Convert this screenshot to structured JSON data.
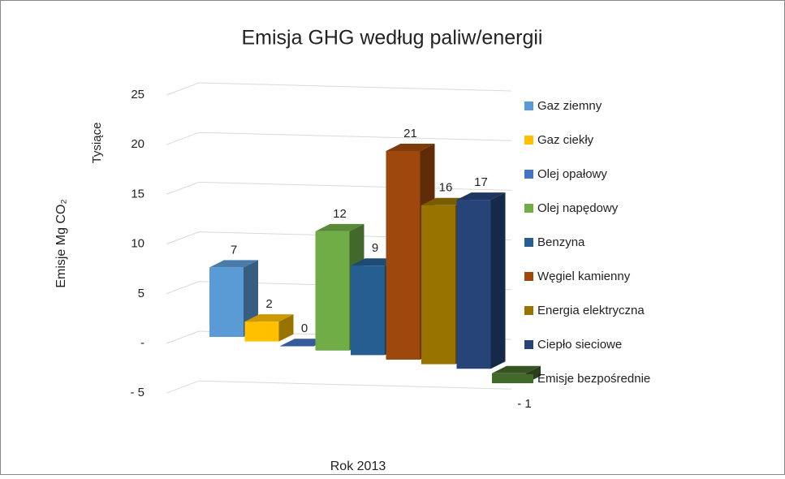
{
  "chart_data": {
    "type": "bar3d",
    "title": "Emisja GHG według paliw/energii",
    "y_label": "Emisje Mg CO₂",
    "y_units": "Tysiące",
    "categories": [
      "Rok 2013"
    ],
    "ylim": [
      -5,
      25
    ],
    "yticks": [
      {
        "value": -5,
        "label": "- 5"
      },
      {
        "value": 0,
        "label": "-"
      },
      5,
      10,
      15,
      20,
      25
    ],
    "grid": true,
    "legend": "right",
    "series": [
      {
        "name": "Gaz ziemny",
        "color": "#5b9bd5",
        "values": [
          7
        ]
      },
      {
        "name": "Gaz ciekły",
        "color": "#ffc000",
        "values": [
          2
        ]
      },
      {
        "name": "Olej opałowy",
        "color": "#4472c4",
        "values": [
          0
        ]
      },
      {
        "name": "Olej napędowy",
        "color": "#70ad47",
        "values": [
          12
        ]
      },
      {
        "name": "Benzyna",
        "color": "#255e91",
        "values": [
          9
        ]
      },
      {
        "name": "Węgiel kamienny",
        "color": "#9e480e",
        "values": [
          21
        ]
      },
      {
        "name": "Energia elektryczna",
        "color": "#997300",
        "values": [
          16
        ]
      },
      {
        "name": "Ciepło sieciowe",
        "color": "#264478",
        "values": [
          17
        ]
      },
      {
        "name": "Emisje bezpośrednie",
        "color": "#43682b",
        "values": [
          -1
        ],
        "value_labels": [
          "- 1"
        ]
      }
    ]
  }
}
